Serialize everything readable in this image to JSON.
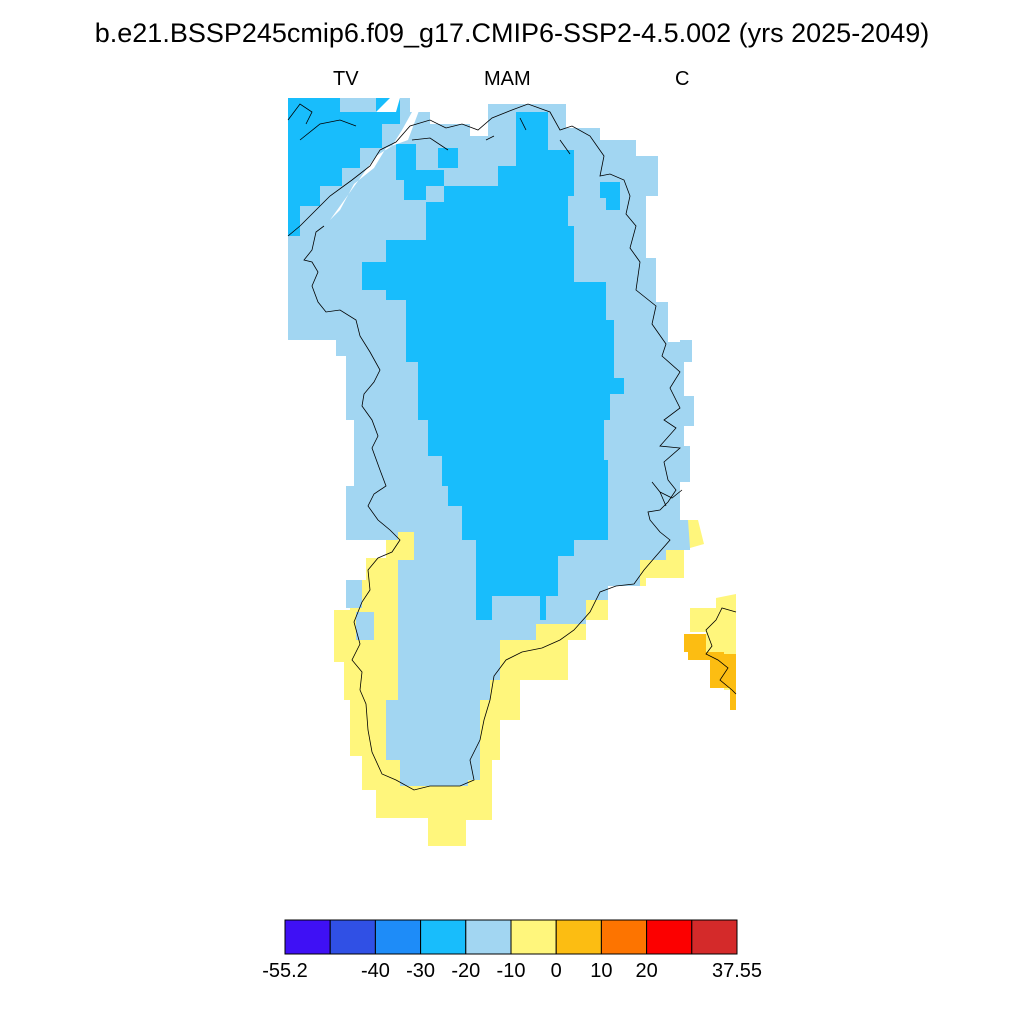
{
  "title": "b.e21.BSSP245cmip6.f09_g17.CMIP6-SSP2-4.5.002 (yrs 2025-2049)",
  "subtitles": {
    "left": "TV",
    "center": "MAM",
    "right": "C"
  },
  "colorbar": {
    "colors": [
      "#3f10f5",
      "#3050e5",
      "#1e8cf8",
      "#18bdfc",
      "#a2d6f2",
      "#fff67c",
      "#fcbd12",
      "#fd7400",
      "#fc0000",
      "#d42a2a"
    ],
    "tick_labels": [
      "-55.2",
      "-40",
      "-30",
      "-20",
      "-10",
      "0",
      "10",
      "20",
      "37.55"
    ]
  },
  "map": {
    "region": "Greenland",
    "field_colors": {
      "below_minus_20": "#18bdfc",
      "minus_20_to_minus_10": "#a2d6f2",
      "0_to_10": "#fff67c",
      "10_to_20": "#fcbd12"
    },
    "coastline_color": "#000000"
  }
}
